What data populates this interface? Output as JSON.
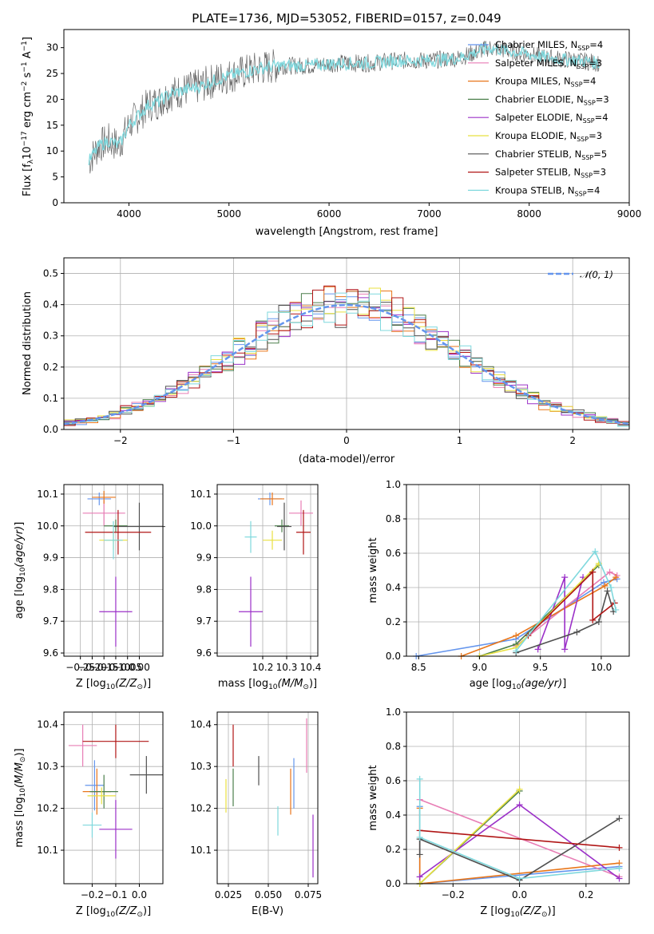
{
  "title": "PLATE=1736, MJD=53052, FIBERID=0157, z=0.049",
  "colors": [
    "#6495ED",
    "#E87DB5",
    "#E8761A",
    "#4B7F4B",
    "#9B30C8",
    "#E8E040",
    "#505050",
    "#B01515",
    "#7FD8DD"
  ],
  "fit_labels": [
    "Chabrier MILES, N_SSP=4",
    "Salpeter MILES, N_SSP=3",
    "Kroupa MILES, N_SSP=4",
    "Chabrier ELODIE, N_SSP=3",
    "Salpeter ELODIE, N_SSP=4",
    "Kroupa ELODIE, N_SSP=3",
    "Chabrier STELIB, N_SSP=5",
    "Salpeter STELIB, N_SSP=3",
    "Kroupa STELIB, N_SSP=4"
  ],
  "spectrum": {
    "xlabel": "wavelength [Angstrom, rest frame]",
    "ylabel": "Flux [f_λ 10^-17 erg cm^-2 s^-1 A^-1]",
    "xlim": [
      3350,
      9000
    ],
    "ylim": [
      0,
      33.5
    ],
    "xticks": [
      "4000",
      "5000",
      "6000",
      "7000",
      "8000",
      "9000"
    ],
    "yticks": [
      "0",
      "5",
      "10",
      "15",
      "20",
      "25",
      "30"
    ]
  },
  "residuals": {
    "xlabel": "(data-model)/error",
    "ylabel": "Normed distribution",
    "legend": "N(0,1)",
    "xlim": [
      -2.5,
      2.5
    ],
    "ylim": [
      0,
      0.55
    ],
    "xticks": [
      "−2",
      "−1",
      "0",
      "1",
      "2"
    ],
    "yticks": [
      "0.0",
      "0.1",
      "0.2",
      "0.3",
      "0.4",
      "0.5"
    ]
  },
  "chart_data": [
    {
      "type": "line",
      "title": "PLATE=1736, MJD=53052, FIBERID=0157, z=0.049",
      "xlabel": "wavelength [Angstrom, rest frame]",
      "ylabel": "Flux [f_λ 10^-17 erg cm^-2 s^-1 A^-1]",
      "xlim": [
        3350,
        9000
      ],
      "ylim": [
        0,
        33.5
      ],
      "continuum_x": [
        3600,
        3700,
        3800,
        3900,
        4000,
        4100,
        4200,
        4300,
        4400,
        4500,
        4700,
        4900,
        5100,
        5300,
        5500,
        5800,
        6100,
        6400,
        6700,
        7000,
        7300,
        7600,
        7900,
        8200,
        8500,
        8700
      ],
      "continuum_y": [
        8,
        11,
        12,
        11,
        15,
        17,
        19,
        19.5,
        21,
        21.5,
        22.5,
        24,
        25,
        26,
        26.5,
        26.5,
        27,
        27,
        27.5,
        27.5,
        28,
        30,
        29,
        28,
        27.5,
        27
      ],
      "legend_placement": "right"
    },
    {
      "type": "bar",
      "title": "",
      "xlabel": "(data-model)/error",
      "ylabel": "Normed distribution",
      "xlim": [
        -2.5,
        2.5
      ],
      "ylim": [
        0,
        0.55
      ],
      "reference": {
        "name": "N(0,1)",
        "mu": 0,
        "sigma": 1
      }
    },
    {
      "type": "scatter",
      "xlabel": "Z [log10(Z/Z_sun)]",
      "ylabel": "age [log10(age/yr)]",
      "xlim": [
        -0.32,
        0.1
      ],
      "ylim": [
        9.59,
        10.13
      ],
      "points": [
        {
          "x": -0.17,
          "y": 10.085,
          "xerr": 0.05,
          "yerr": 0.02
        },
        {
          "x": -0.15,
          "y": 10.04,
          "xerr": 0.09,
          "yerr": 0.04
        },
        {
          "x": -0.15,
          "y": 10.09,
          "xerr": 0.05,
          "yerr": 0.02
        },
        {
          "x": -0.1,
          "y": 10.0,
          "xerr": 0.05,
          "yerr": 0.02
        },
        {
          "x": -0.1,
          "y": 9.73,
          "xerr": 0.07,
          "yerr": 0.11
        },
        {
          "x": -0.11,
          "y": 9.955,
          "xerr": 0.06,
          "yerr": 0.03
        },
        {
          "x": 0.0,
          "y": 9.998,
          "xerr": 0.11,
          "yerr": 0.075
        },
        {
          "x": -0.09,
          "y": 9.98,
          "xerr": 0.14,
          "yerr": 0.07
        },
        {
          "x": -0.11,
          "y": 9.955,
          "xerr": 0.04,
          "yerr": 0.06
        }
      ],
      "xticks": [
        "−0.25",
        "−0.20",
        "−0.15",
        "−0.10",
        "−0.05",
        "0.00"
      ],
      "yticks": [
        "9.6",
        "9.7",
        "9.8",
        "9.9",
        "10.0",
        "10.1"
      ]
    },
    {
      "type": "scatter",
      "xlabel": "mass [log10(M/M_sun)]",
      "ylabel": "",
      "xlim": [
        10.01,
        10.43
      ],
      "ylim": [
        9.59,
        10.13
      ],
      "points": [
        {
          "x": 10.23,
          "y": 10.085,
          "xerr": 0.05,
          "yerr": 0.02
        },
        {
          "x": 10.36,
          "y": 10.04,
          "xerr": 0.05,
          "yerr": 0.04
        },
        {
          "x": 10.24,
          "y": 10.085,
          "xerr": 0.05,
          "yerr": 0.02
        },
        {
          "x": 10.28,
          "y": 10.0,
          "xerr": 0.03,
          "yerr": 0.02
        },
        {
          "x": 10.15,
          "y": 9.73,
          "xerr": 0.05,
          "yerr": 0.11
        },
        {
          "x": 10.24,
          "y": 9.955,
          "xerr": 0.04,
          "yerr": 0.03
        },
        {
          "x": 10.29,
          "y": 9.998,
          "xerr": 0.03,
          "yerr": 0.075
        },
        {
          "x": 10.37,
          "y": 9.98,
          "xerr": 0.03,
          "yerr": 0.07
        },
        {
          "x": 10.15,
          "y": 9.965,
          "xerr": 0.025,
          "yerr": 0.05
        }
      ],
      "xticks": [
        "10.2",
        "10.3",
        "10.4"
      ],
      "yticks": [
        "9.6",
        "9.7",
        "9.8",
        "9.9",
        "10.0",
        "10.1"
      ]
    },
    {
      "type": "line",
      "xlabel": "age [log10(age/yr)]",
      "ylabel": "mass weight",
      "xlim": [
        8.4,
        10.23
      ],
      "ylim": [
        0,
        1
      ],
      "series": [
        {
          "x": [
            8.48,
            9.3,
            10.02,
            10.13
          ],
          "y": [
            0.0,
            0.1,
            0.43,
            0.45
          ]
        },
        {
          "x": [
            9.3,
            10.07,
            10.13
          ],
          "y": [
            0.06,
            0.49,
            0.47
          ]
        },
        {
          "x": [
            8.85,
            9.3,
            10.03,
            10.12
          ],
          "y": [
            0.0,
            0.12,
            0.41,
            0.46
          ]
        },
        {
          "x": [
            9.0,
            9.3,
            9.98
          ],
          "y": [
            0.0,
            0.07,
            0.53
          ]
        },
        {
          "x": [
            9.48,
            9.7,
            9.7,
            9.85
          ],
          "y": [
            0.04,
            0.46,
            0.04,
            0.46
          ]
        },
        {
          "x": [
            9.0,
            9.3,
            9.98
          ],
          "y": [
            0.0,
            0.05,
            0.54
          ]
        },
        {
          "x": [
            9.3,
            9.8,
            9.98,
            10.05,
            10.1
          ],
          "y": [
            0.02,
            0.14,
            0.2,
            0.38,
            0.26
          ]
        },
        {
          "x": [
            9.4,
            9.93,
            9.93,
            10.11
          ],
          "y": [
            0.12,
            0.49,
            0.21,
            0.31
          ]
        },
        {
          "x": [
            9.3,
            9.95,
            10.08,
            10.12
          ],
          "y": [
            0.03,
            0.61,
            0.4,
            0.27
          ]
        }
      ],
      "xticks": [
        "8.5",
        "9.0",
        "9.5",
        "10.0"
      ],
      "yticks": [
        "0.0",
        "0.2",
        "0.4",
        "0.6",
        "0.8",
        "1.0"
      ]
    },
    {
      "type": "scatter",
      "xlabel": "Z [log10(Z/Z_sun)]",
      "ylabel": "mass [log10(M/M_sun)]",
      "xlim": [
        -0.32,
        0.1
      ],
      "ylim": [
        10.02,
        10.43
      ],
      "points": [
        {
          "x": -0.19,
          "y": 10.255,
          "xerr": 0.04,
          "yerr": 0.06
        },
        {
          "x": -0.24,
          "y": 10.35,
          "xerr": 0.06,
          "yerr": 0.05
        },
        {
          "x": -0.18,
          "y": 10.24,
          "xerr": 0.06,
          "yerr": 0.055
        },
        {
          "x": -0.15,
          "y": 10.24,
          "xerr": 0.06,
          "yerr": 0.04
        },
        {
          "x": -0.1,
          "y": 10.15,
          "xerr": 0.07,
          "yerr": 0.07
        },
        {
          "x": -0.16,
          "y": 10.23,
          "xerr": 0.06,
          "yerr": 0.02
        },
        {
          "x": 0.03,
          "y": 10.28,
          "xerr": 0.07,
          "yerr": 0.045
        },
        {
          "x": -0.1,
          "y": 10.36,
          "xerr": 0.14,
          "yerr": 0.04
        },
        {
          "x": -0.2,
          "y": 10.16,
          "xerr": 0.04,
          "yerr": 0.03
        }
      ],
      "xticks": [
        "−0.2",
        "−0.1",
        "0.0"
      ],
      "yticks": [
        "10.1",
        "10.2",
        "10.3",
        "10.4"
      ]
    },
    {
      "type": "scatter",
      "xlabel": "E(B-V)",
      "ylabel": "",
      "xlim": [
        0.018,
        0.081
      ],
      "ylim": [
        10.02,
        10.43
      ],
      "points": [
        {
          "x": 0.066,
          "y": 10.26,
          "yerr": 0.06
        },
        {
          "x": 0.074,
          "y": 10.35,
          "yerr": 0.065
        },
        {
          "x": 0.064,
          "y": 10.24,
          "yerr": 0.055
        },
        {
          "x": 0.028,
          "y": 10.25,
          "yerr": 0.045
        },
        {
          "x": 0.078,
          "y": 10.11,
          "yerr": 0.075
        },
        {
          "x": 0.0235,
          "y": 10.23,
          "yerr": 0.04
        },
        {
          "x": 0.044,
          "y": 10.29,
          "yerr": 0.035
        },
        {
          "x": 0.028,
          "y": 10.35,
          "yerr": 0.05
        },
        {
          "x": 0.056,
          "y": 10.17,
          "yerr": 0.035
        }
      ],
      "xticks": [
        "0.025",
        "0.050",
        "0.075"
      ],
      "yticks": [
        "10.1",
        "10.2",
        "10.3",
        "10.4"
      ]
    },
    {
      "type": "line",
      "xlabel": "Z [log10(Z/Z_sun)]",
      "ylabel": "mass weight",
      "xlim": [
        -0.34,
        0.33
      ],
      "ylim": [
        0,
        1
      ],
      "series": [
        {
          "x": [
            -0.3,
            -0.3,
            0.3
          ],
          "y": [
            0.45,
            0.0,
            0.1
          ]
        },
        {
          "x": [
            -0.3,
            0.3
          ],
          "y": [
            0.49,
            0.04
          ]
        },
        {
          "x": [
            -0.3,
            -0.3,
            0.3
          ],
          "y": [
            0.44,
            0.0,
            0.12
          ]
        },
        {
          "x": [
            -0.3,
            0.0
          ],
          "y": [
            0.0,
            0.54
          ]
        },
        {
          "x": [
            -0.3,
            0.0,
            0.3
          ],
          "y": [
            0.04,
            0.46,
            0.03
          ]
        },
        {
          "x": [
            -0.3,
            0.0
          ],
          "y": [
            0.0,
            0.55
          ]
        },
        {
          "x": [
            -0.3,
            -0.3,
            0.0,
            0.3
          ],
          "y": [
            0.17,
            0.26,
            0.02,
            0.38
          ]
        },
        {
          "x": [
            -0.3,
            0.3
          ],
          "y": [
            0.31,
            0.21
          ]
        },
        {
          "x": [
            -0.3,
            -0.3,
            0.0,
            0.3
          ],
          "y": [
            0.61,
            0.27,
            0.03,
            0.09
          ]
        }
      ],
      "xticks": [
        "−0.2",
        "0.0",
        "0.2"
      ],
      "yticks": [
        "0.0",
        "0.2",
        "0.4",
        "0.6",
        "0.8",
        "1.0"
      ]
    }
  ]
}
